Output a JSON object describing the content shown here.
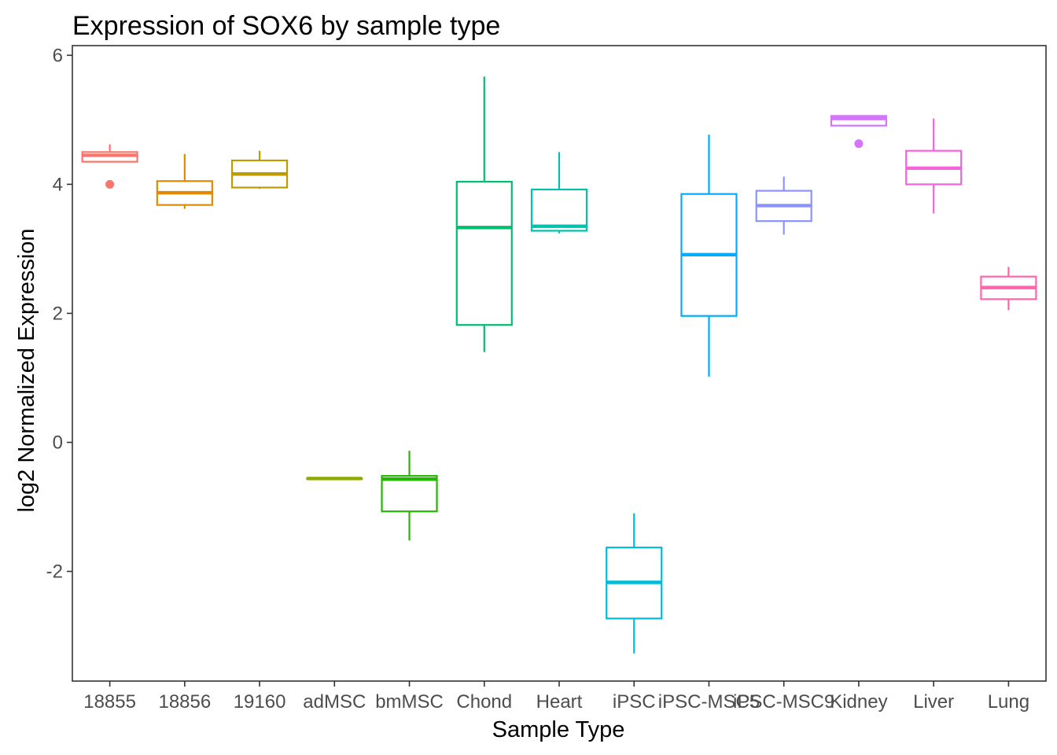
{
  "chart_data": {
    "type": "box",
    "title": "Expression of SOX6 by sample type",
    "xlabel": "Sample Type",
    "ylabel": "log2 Normalized Expression",
    "ylim": [
      -3.7,
      6.15
    ],
    "yticks": [
      -2,
      0,
      2,
      4,
      6
    ],
    "ytick_labels": [
      "-2",
      "0",
      "2",
      "4",
      "6"
    ],
    "grid": false,
    "legend": "none",
    "categories": [
      "18855",
      "18856",
      "19160",
      "adMSC",
      "bmMSC",
      "Chond",
      "Heart",
      "iPSC",
      "iPSC-MSC5",
      "iPSC-MSC9",
      "Kidney",
      "Liver",
      "Lung"
    ],
    "colors": [
      "#F8766D",
      "#E18A00",
      "#BE9C00",
      "#8CAB00",
      "#24B700",
      "#00BE70",
      "#00C1AB",
      "#00BBDA",
      "#00ACFC",
      "#8B93FF",
      "#D575FE",
      "#F962DD",
      "#FF65AC"
    ],
    "boxes": [
      {
        "category": "18855",
        "whisker_low": 4.35,
        "q1": 4.35,
        "median": 4.45,
        "q3": 4.5,
        "whisker_high": 4.62,
        "outliers": [
          4.0
        ]
      },
      {
        "category": "18856",
        "whisker_low": 3.62,
        "q1": 3.68,
        "median": 3.87,
        "q3": 4.05,
        "whisker_high": 4.47,
        "outliers": []
      },
      {
        "category": "19160",
        "whisker_low": 3.93,
        "q1": 3.95,
        "median": 4.16,
        "q3": 4.37,
        "whisker_high": 4.52,
        "outliers": []
      },
      {
        "category": "adMSC",
        "whisker_low": -0.56,
        "q1": -0.56,
        "median": -0.56,
        "q3": -0.56,
        "whisker_high": -0.56,
        "outliers": []
      },
      {
        "category": "bmMSC",
        "whisker_low": -1.52,
        "q1": -1.07,
        "median": -0.57,
        "q3": -0.52,
        "whisker_high": -0.13,
        "outliers": []
      },
      {
        "category": "Chond",
        "whisker_low": 1.4,
        "q1": 1.82,
        "median": 3.33,
        "q3": 4.04,
        "whisker_high": 5.67,
        "outliers": []
      },
      {
        "category": "Heart",
        "whisker_low": 3.24,
        "q1": 3.28,
        "median": 3.35,
        "q3": 3.92,
        "whisker_high": 4.5,
        "outliers": []
      },
      {
        "category": "iPSC",
        "whisker_low": -3.27,
        "q1": -2.73,
        "median": -2.17,
        "q3": -1.63,
        "whisker_high": -1.1,
        "outliers": []
      },
      {
        "category": "iPSC-MSC5",
        "whisker_low": 1.02,
        "q1": 1.96,
        "median": 2.91,
        "q3": 3.85,
        "whisker_high": 4.77,
        "outliers": []
      },
      {
        "category": "iPSC-MSC9",
        "whisker_low": 3.22,
        "q1": 3.43,
        "median": 3.67,
        "q3": 3.9,
        "whisker_high": 4.12,
        "outliers": []
      },
      {
        "category": "Kidney",
        "whisker_low": 4.91,
        "q1": 4.91,
        "median": 5.02,
        "q3": 5.06,
        "whisker_high": 5.06,
        "outliers": [
          4.63
        ]
      },
      {
        "category": "Liver",
        "whisker_low": 3.55,
        "q1": 4.0,
        "median": 4.25,
        "q3": 4.52,
        "whisker_high": 5.02,
        "outliers": []
      },
      {
        "category": "Lung",
        "whisker_low": 2.05,
        "q1": 2.22,
        "median": 2.4,
        "q3": 2.57,
        "whisker_high": 2.72,
        "outliers": []
      }
    ]
  }
}
